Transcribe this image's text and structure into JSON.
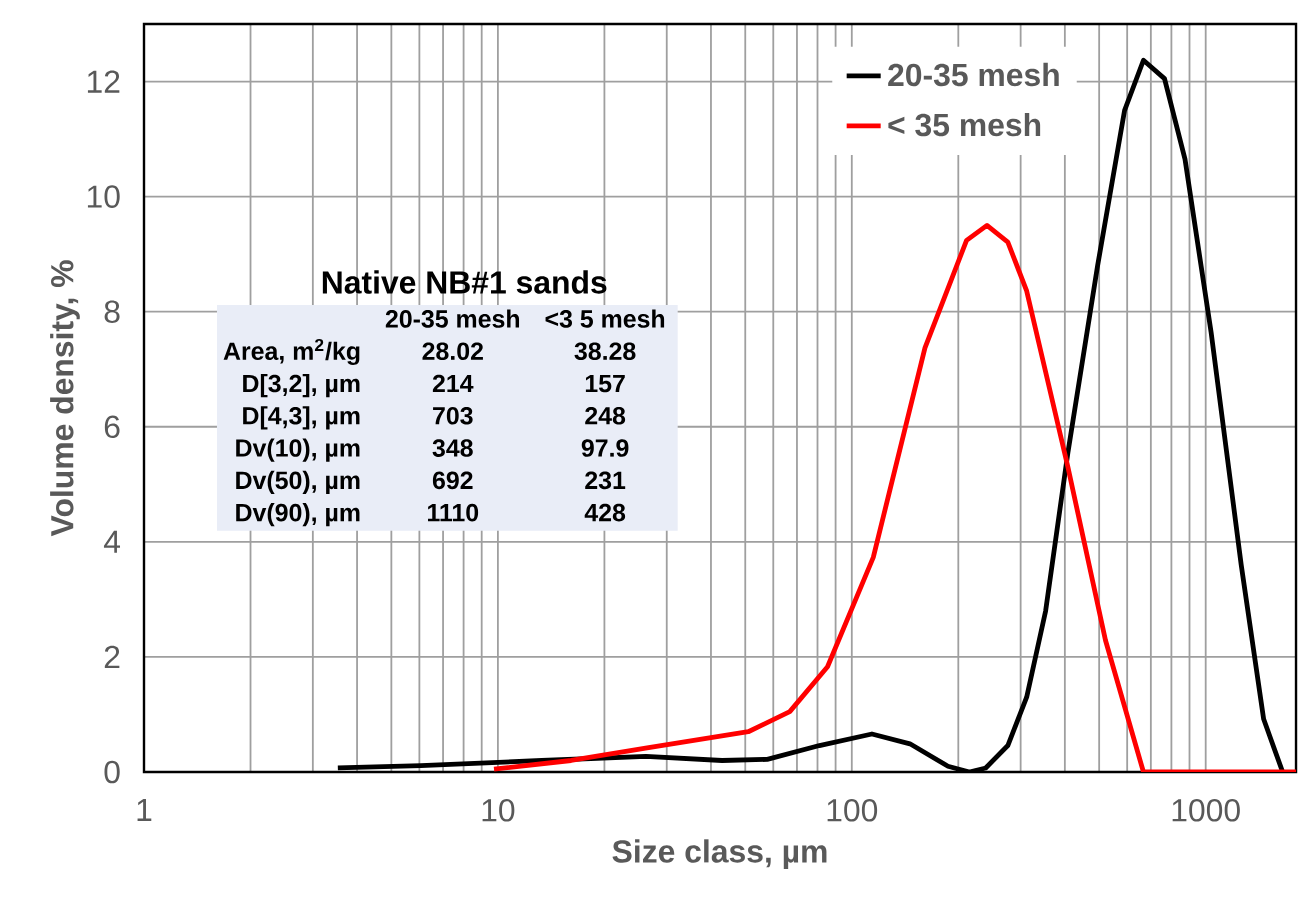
{
  "chart_data": {
    "type": "line",
    "xlabel": "Size class, µm",
    "ylabel": "Volume density, %",
    "log": "x",
    "grid": true,
    "legend": "top right",
    "marker": "none",
    "line_style": "solid",
    "xlim": [
      1,
      1800
    ],
    "xticks": [
      1,
      10,
      100,
      1000
    ],
    "ylim": [
      0,
      13
    ],
    "yticks": [
      0,
      2,
      4,
      6,
      8,
      10,
      12
    ],
    "series": [
      {
        "name": "20-35 mesh",
        "color": "#000000",
        "x": [
          3.53,
          6.06,
          13.3,
          26.2,
          43,
          57.7,
          81,
          114,
          146,
          187,
          215,
          239,
          276,
          312,
          353,
          408,
          495,
          590,
          667,
          765,
          874,
          1036,
          1260,
          1458,
          1650
        ],
        "values": [
          0.07,
          0.11,
          0.2,
          0.27,
          0.2,
          0.22,
          0.46,
          0.66,
          0.49,
          0.1,
          0.0,
          0.07,
          0.46,
          1.3,
          2.8,
          5.55,
          8.8,
          11.5,
          12.37,
          12.05,
          10.65,
          7.64,
          3.6,
          0.92,
          0
        ]
      },
      {
        "name": "< 35 mesh",
        "color": "#ff0000",
        "x": [
          9.75,
          16.1,
          26.4,
          51,
          66.8,
          85.4,
          115,
          161,
          211,
          241,
          276,
          312,
          408,
          521,
          667,
          1000,
          1800
        ],
        "values": [
          0.05,
          0.2,
          0.42,
          0.7,
          1.05,
          1.83,
          3.73,
          7.37,
          9.24,
          9.5,
          9.21,
          8.36,
          5.3,
          2.29,
          0,
          0,
          0
        ]
      }
    ],
    "annotations": [
      "Native NB#1 sands",
      "20-35 mesh",
      "<3 5 mesh",
      "Area, m$^{2}$/kg",
      "28.02",
      "38.28",
      "D[3,2], µm",
      "214",
      "157",
      "D[4,3], µm",
      "703",
      "248",
      "Dv(10), µm",
      "348",
      "97.9",
      "Dv(50), µm",
      "692",
      "231",
      "Dv(90), µm",
      "1110",
      "428"
    ]
  }
}
